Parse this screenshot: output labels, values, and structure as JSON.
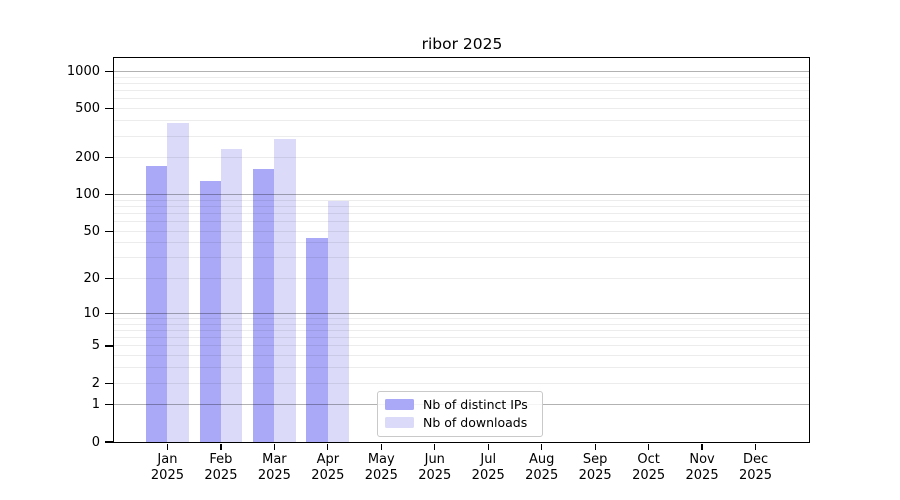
{
  "title": "ribor 2025",
  "colors": {
    "series_ips": "#a9a9f7",
    "series_downloads": "#dbdbf9",
    "grid_major": "rgba(0,0,0,0.30)",
    "grid_minor": "rgba(0,0,0,0.075)",
    "axis": "#000000",
    "legend_border": "#c9c9c9"
  },
  "chart_data": {
    "type": "bar",
    "title": "ribor 2025",
    "categories": [
      "Jan",
      "Feb",
      "Mar",
      "Apr",
      "May",
      "Jun",
      "Jul",
      "Aug",
      "Sep",
      "Oct",
      "Nov",
      "Dec"
    ],
    "category_year": "2025",
    "series": [
      {
        "name": "Nb of distinct IPs",
        "color": "#a9a9f7",
        "values": [
          171,
          130,
          162,
          44,
          null,
          null,
          null,
          null,
          null,
          null,
          null,
          null
        ]
      },
      {
        "name": "Nb of downloads",
        "color": "#dbdbf9",
        "values": [
          385,
          236,
          285,
          88,
          null,
          null,
          null,
          null,
          null,
          null,
          null,
          null
        ]
      }
    ],
    "yscale": "log1p",
    "ylim": [
      0,
      1290
    ],
    "yticks": [
      0,
      1,
      2,
      5,
      10,
      20,
      50,
      100,
      200,
      500,
      1000
    ],
    "grid": {
      "major": [
        1,
        10,
        100,
        1000
      ],
      "minor": [
        2,
        3,
        4,
        5,
        6,
        7,
        8,
        9,
        20,
        30,
        40,
        50,
        60,
        70,
        80,
        90,
        200,
        300,
        400,
        500,
        600,
        700,
        800,
        900
      ]
    },
    "legend_position": "lower-center",
    "grid_on": true
  }
}
